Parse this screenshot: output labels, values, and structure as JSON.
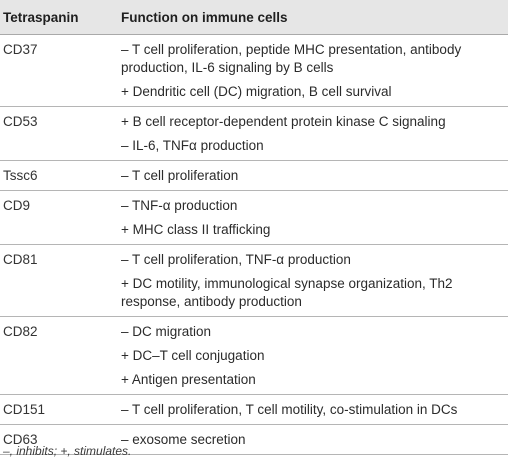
{
  "table": {
    "headers": [
      "Tetraspanin",
      "Function on immune cells"
    ],
    "rows": [
      {
        "tetraspanin": "CD37",
        "functions": [
          "– T cell proliferation, peptide MHC presentation, antibody production, IL-6 signaling by B cells",
          "+ Dendritic cell (DC) migration, B cell survival"
        ]
      },
      {
        "tetraspanin": "CD53",
        "functions": [
          "+ B cell receptor-dependent protein kinase C signaling",
          "– IL-6, TNFα production"
        ]
      },
      {
        "tetraspanin": "Tssc6",
        "functions": [
          "– T cell proliferation"
        ]
      },
      {
        "tetraspanin": "CD9",
        "functions": [
          "– TNF-α production",
          "+ MHC class II trafficking"
        ]
      },
      {
        "tetraspanin": "CD81",
        "functions": [
          "– T cell proliferation, TNF-α production",
          "+ DC motility, immunological synapse organization, Th2 response, antibody production"
        ]
      },
      {
        "tetraspanin": "CD82",
        "functions": [
          "– DC migration",
          "+ DC–T cell conjugation",
          "+ Antigen presentation"
        ]
      },
      {
        "tetraspanin": "CD151",
        "functions": [
          "– T cell proliferation, T cell motility, co-stimulation in DCs"
        ]
      },
      {
        "tetraspanin": "CD63",
        "functions": [
          "– exosome secretion"
        ]
      }
    ]
  },
  "footnote": "–, inhibits; +, stimulates."
}
